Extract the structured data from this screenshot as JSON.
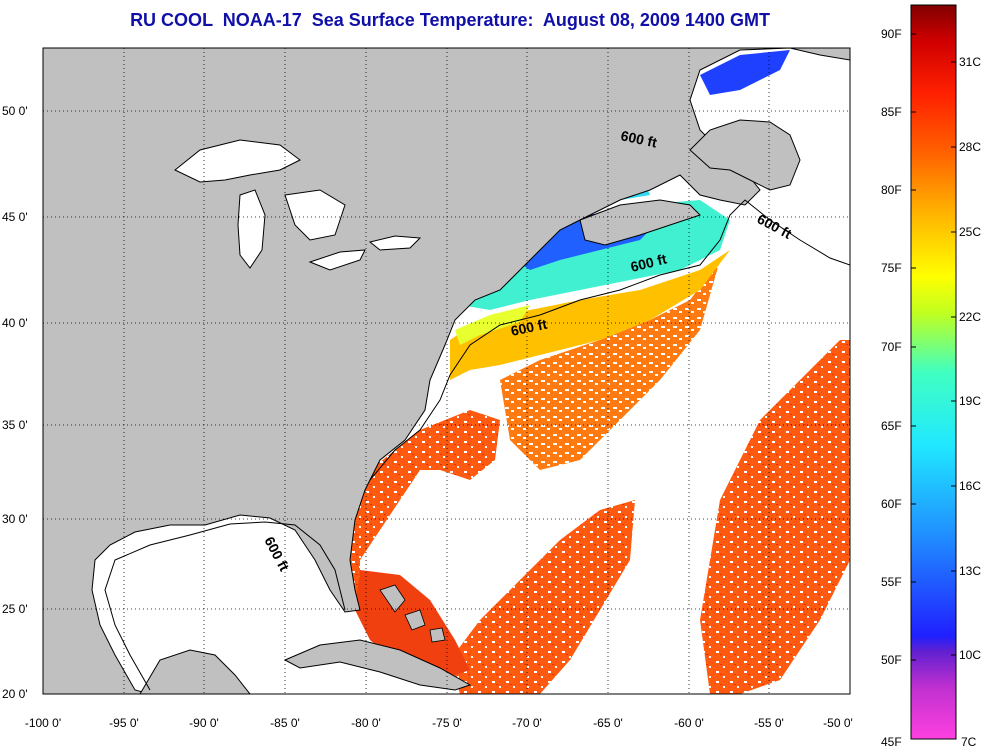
{
  "title": "RU COOL  NOAA-17  Sea Surface Temperature:  August 08, 2009 1400 GMT",
  "lat_labels": [
    "50 0'",
    "45 0'",
    "40 0'",
    "35 0'",
    "30 0'",
    "25 0'",
    "20 0'"
  ],
  "lon_labels": [
    "-100 0'",
    "-95 0'",
    "-90 0'",
    "-85 0'",
    "-80 0'",
    "-75 0'",
    "-70 0'",
    "-65 0'",
    "-60 0'",
    "-55 0'",
    "-50 0'"
  ],
  "colorbar_f_labels": [
    "90F",
    "85F",
    "80F",
    "75F",
    "70F",
    "65F",
    "60F",
    "55F",
    "50F",
    "45F"
  ],
  "colorbar_c_labels": [
    "31C",
    "28C",
    "25C",
    "22C",
    "19C",
    "16C",
    "13C",
    "10C",
    "7C"
  ],
  "contour_labels": [
    "600 ft",
    "600 ft",
    "600 ft",
    "600 ft",
    "600 ft"
  ],
  "colors": {
    "land": "#c0c0c0",
    "title": "#1010a8",
    "colorbar_stops": [
      "#ff40e0",
      "#8020c0",
      "#2020ff",
      "#2080ff",
      "#20e0ff",
      "#40ffc0",
      "#c0ff20",
      "#ffff00",
      "#ffa000",
      "#ff4000",
      "#e00000",
      "#800000"
    ]
  }
}
